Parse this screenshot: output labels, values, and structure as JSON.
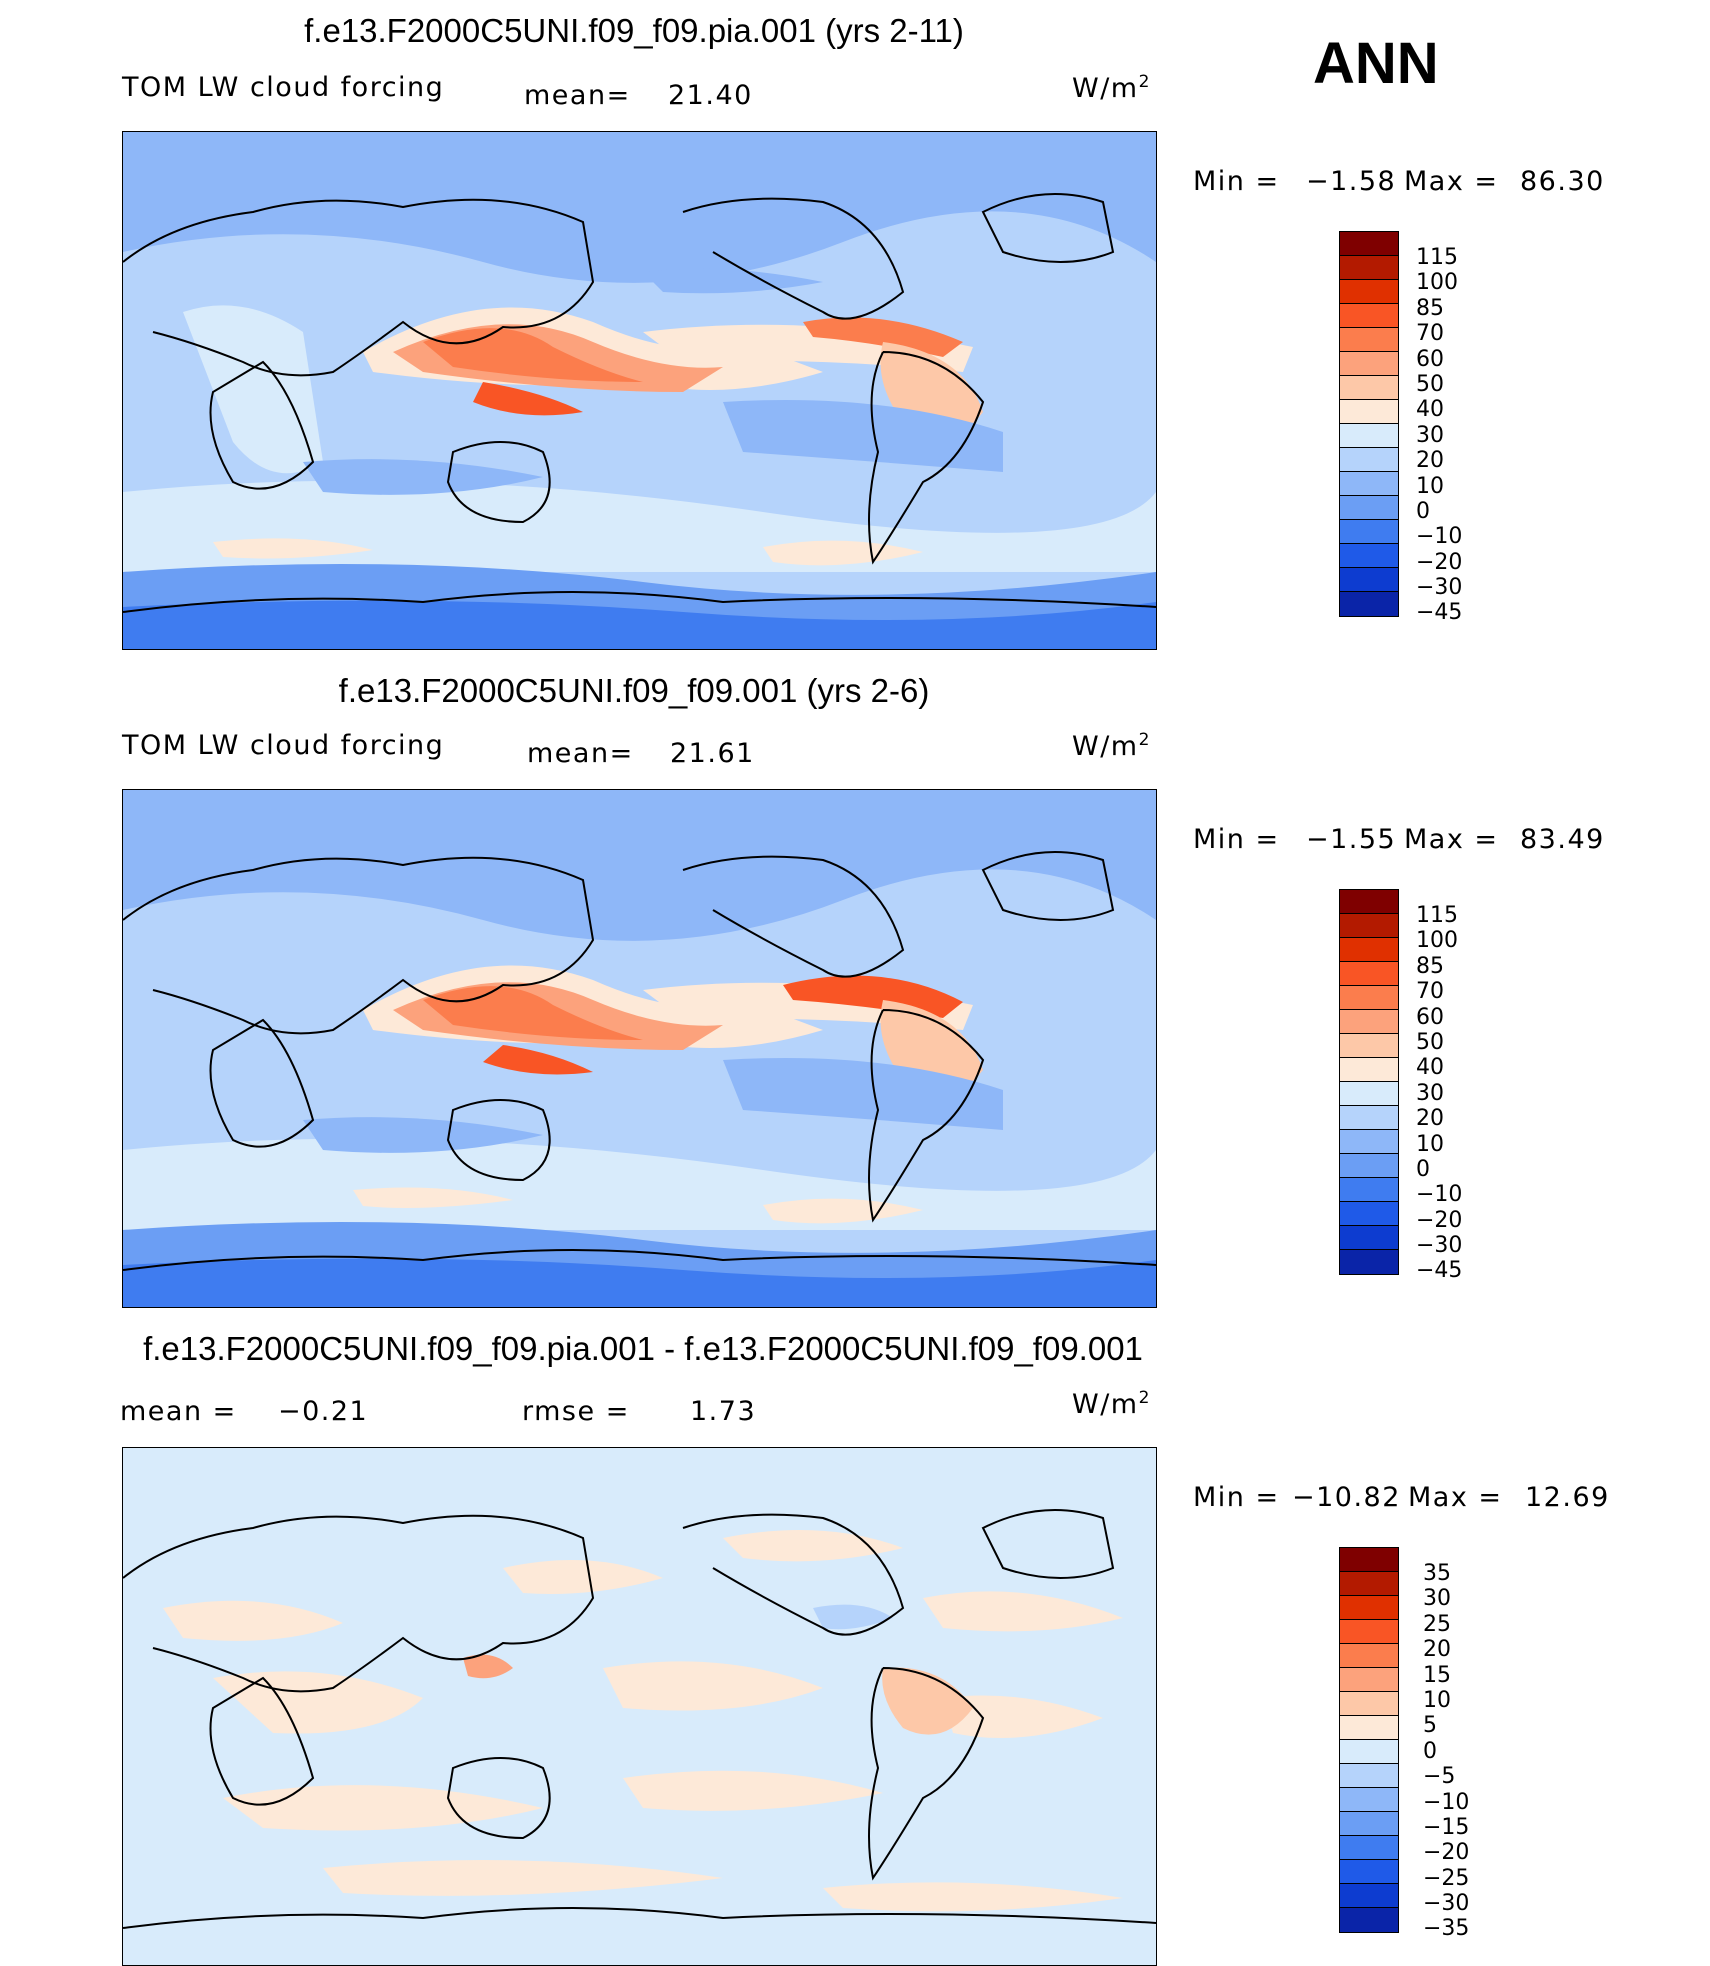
{
  "season": "ANN",
  "panels": [
    {
      "title": "f.e13.F2000C5UNI.f09_f09.pia.001 (yrs 2-11)",
      "variable": "TOM LW cloud forcing",
      "stat_label": "mean=",
      "stat_value": "21.40",
      "unit_base": "W/m",
      "unit_exp": "2",
      "minmax": {
        "min_label": "Min  =",
        "min_value": "−1.58",
        "max_label": "Max  =",
        "max_value": "86.30"
      },
      "colorbar": {
        "colors": [
          "#7f0000",
          "#b31a00",
          "#e03000",
          "#f95525",
          "#fb7d4d",
          "#fca27c",
          "#fdc8a8",
          "#fde9d8",
          "#d8ebfb",
          "#b5d3fb",
          "#8eb7f8",
          "#6b9ef4",
          "#3f7cf0",
          "#1f5ae8",
          "#0d3cd0",
          "#0a24a8",
          "#05137a"
        ],
        "ticks": [
          "115",
          "100",
          "85",
          "70",
          "60",
          "50",
          "40",
          "30",
          "20",
          "10",
          "0",
          "−10",
          "−20",
          "−30",
          "−45"
        ]
      }
    },
    {
      "title": "f.e13.F2000C5UNI.f09_f09.001 (yrs 2-6)",
      "variable": "TOM LW cloud forcing",
      "stat_label": "mean=",
      "stat_value": "21.61",
      "unit_base": "W/m",
      "unit_exp": "2",
      "minmax": {
        "min_label": "Min  =",
        "min_value": "−1.55",
        "max_label": "Max  =",
        "max_value": "83.49"
      },
      "colorbar": {
        "colors": [
          "#7f0000",
          "#b31a00",
          "#e03000",
          "#f95525",
          "#fb7d4d",
          "#fca27c",
          "#fdc8a8",
          "#fde9d8",
          "#d8ebfb",
          "#b5d3fb",
          "#8eb7f8",
          "#6b9ef4",
          "#3f7cf0",
          "#1f5ae8",
          "#0d3cd0",
          "#0a24a8",
          "#05137a"
        ],
        "ticks": [
          "115",
          "100",
          "85",
          "70",
          "60",
          "50",
          "40",
          "30",
          "20",
          "10",
          "0",
          "−10",
          "−20",
          "−30",
          "−45"
        ]
      }
    },
    {
      "title": "f.e13.F2000C5UNI.f09_f09.pia.001 - f.e13.F2000C5UNI.f09_f09.001",
      "stat_label": "mean  =",
      "stat_value": "−0.21",
      "rmse_label": "rmse  =",
      "rmse_value": "1.73",
      "unit_base": "W/m",
      "unit_exp": "2",
      "minmax": {
        "min_label": "Min  =",
        "min_value": "−10.82",
        "max_label": "Max  =",
        "max_value": "12.69"
      },
      "colorbar": {
        "colors": [
          "#7f0000",
          "#b31a00",
          "#e03000",
          "#f95525",
          "#fb7d4d",
          "#fca27c",
          "#fdc8a8",
          "#fde9d8",
          "#d8ebfb",
          "#b5d3fb",
          "#8eb7f8",
          "#6b9ef4",
          "#3f7cf0",
          "#1f5ae8",
          "#0d3cd0",
          "#0a24a8",
          "#05137a"
        ],
        "ticks": [
          "35",
          "30",
          "25",
          "20",
          "15",
          "10",
          "5",
          "0",
          "−5",
          "−10",
          "−15",
          "−20",
          "−25",
          "−30",
          "−35"
        ]
      }
    }
  ]
}
